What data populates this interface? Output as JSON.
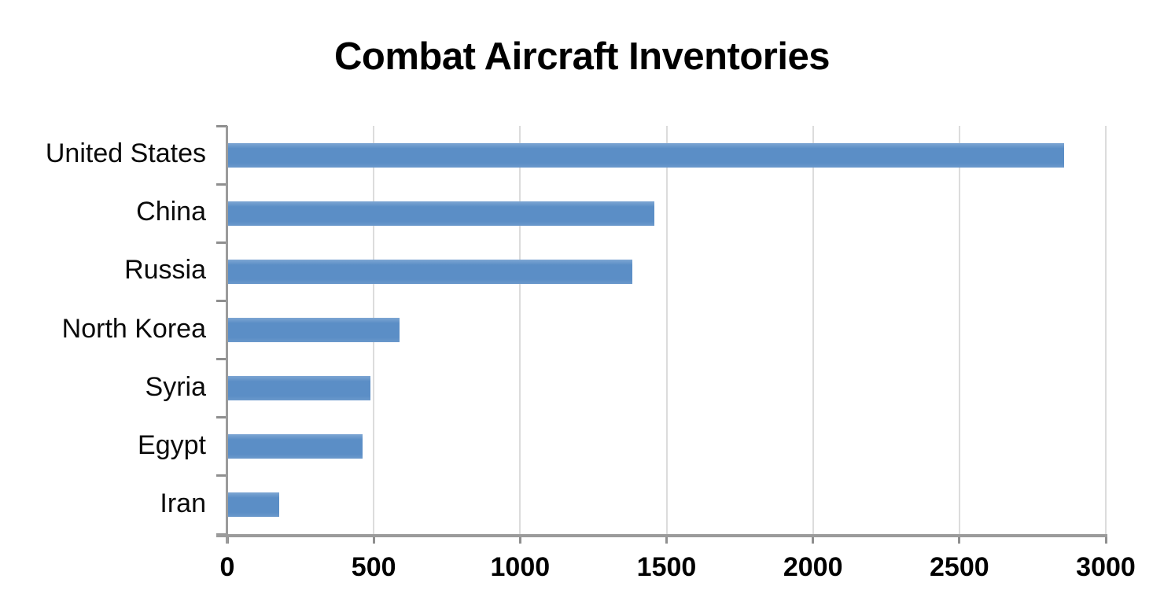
{
  "page": {
    "background": "#ffffff"
  },
  "chart_data": {
    "type": "bar",
    "orientation": "horizontal",
    "title": "Combat Aircraft Inventories",
    "categories": [
      "United States",
      "China",
      "Russia",
      "North Korea",
      "Syria",
      "Egypt",
      "Iran"
    ],
    "values": [
      2855,
      1455,
      1380,
      585,
      485,
      460,
      175
    ],
    "xlabel": "",
    "ylabel": "",
    "xlim": [
      0,
      3000
    ],
    "x_ticks": [
      0,
      500,
      1000,
      1500,
      2000,
      2500,
      3000
    ],
    "grid": "vertical-only",
    "legend": false,
    "colors": {
      "bar": "#5b8ec6",
      "bar_edge_highlight": "#7ea6d3",
      "gridline": "#dcdcdc",
      "axis": "#9b9b9b",
      "tick": "#8f8f8f",
      "text": "#000000",
      "background": "#ffffff"
    }
  }
}
